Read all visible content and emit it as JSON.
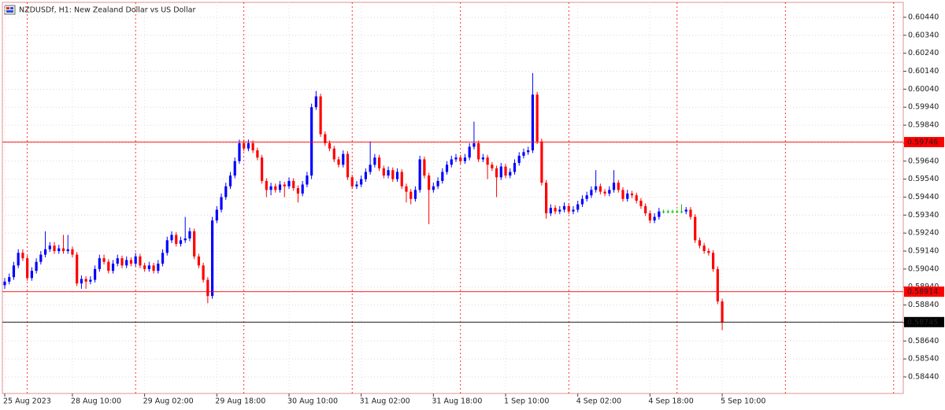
{
  "chart_data": {
    "type": "candlestick",
    "title": "NZDUSDf, H1:  New Zealand Dollar vs US Dollar",
    "title_color": "#d00000",
    "categories": [
      "25 Aug 2023",
      null,
      null,
      null,
      null,
      null,
      null,
      null,
      null,
      null,
      null,
      null,
      null,
      null,
      null,
      "28 Aug 10:00",
      null,
      null,
      null,
      null,
      null,
      null,
      null,
      null,
      null,
      null,
      null,
      null,
      null,
      null,
      null,
      "29 Aug 02:00",
      null,
      null,
      null,
      null,
      null,
      null,
      null,
      null,
      null,
      null,
      null,
      null,
      null,
      null,
      null,
      "29 Aug 18:00",
      null,
      null,
      null,
      null,
      null,
      null,
      null,
      null,
      null,
      null,
      null,
      null,
      null,
      null,
      null,
      "30 Aug 10:00",
      null,
      null,
      null,
      null,
      null,
      null,
      null,
      null,
      null,
      null,
      null,
      null,
      null,
      null,
      null,
      "31 Aug 02:00",
      null,
      null,
      null,
      null,
      null,
      null,
      null,
      null,
      null,
      null,
      null,
      null,
      null,
      null,
      null,
      "31 Aug 18:00",
      null,
      null,
      null,
      null,
      null,
      null,
      null,
      null,
      null,
      null,
      null,
      null,
      null,
      null,
      null,
      "1 Sep 10:00",
      null,
      null,
      null,
      null,
      null,
      null,
      null,
      null,
      null,
      null,
      null,
      null,
      null,
      null,
      null,
      "4 Sep 02:00",
      null,
      null,
      null,
      null,
      null,
      null,
      null,
      null,
      null,
      null,
      null,
      null,
      null,
      null,
      null,
      "4 Sep 18:00",
      null,
      null,
      null,
      null,
      null,
      null,
      null,
      null,
      null,
      null,
      null,
      null,
      null,
      null,
      null,
      "5 Sep 10:00"
    ],
    "open": [
      0.5895,
      0.5897,
      0.58995,
      0.5906,
      0.5913,
      0.591,
      0.5899,
      0.5903,
      0.5908,
      0.5912,
      0.5915,
      0.5917,
      0.5914,
      0.59155,
      0.5914,
      0.5915,
      0.5912,
      0.5896,
      0.58985,
      0.5897,
      0.5898,
      0.5904,
      0.591,
      0.5908,
      0.5903,
      0.5907,
      0.591,
      0.5906,
      0.5909,
      0.5907,
      0.5911,
      0.5906,
      0.5904,
      0.5906,
      0.5903,
      0.5907,
      0.5913,
      0.592,
      0.5923,
      0.5918,
      0.592,
      0.5921,
      0.5925,
      0.5911,
      0.5906,
      0.5898,
      0.5889,
      0.5931,
      0.5937,
      0.5944,
      0.595,
      0.5956,
      0.5964,
      0.5974,
      0.5971,
      0.5974,
      0.597,
      0.5966,
      0.5953,
      0.5948,
      0.595,
      0.5948,
      0.5951,
      0.595,
      0.5953,
      0.5949,
      0.5946,
      0.5951,
      0.5956,
      0.5994,
      0.6,
      0.5979,
      0.5974,
      0.5971,
      0.5965,
      0.5962,
      0.5968,
      0.5955,
      0.595,
      0.5951,
      0.5954,
      0.5958,
      0.5962,
      0.5966,
      0.596,
      0.5956,
      0.5959,
      0.5954,
      0.5958,
      0.595,
      0.5947,
      0.5943,
      0.5948,
      0.5965,
      0.5956,
      0.5948,
      0.595,
      0.5953,
      0.5958,
      0.5962,
      0.5965,
      0.5966,
      0.5964,
      0.5966,
      0.5972,
      0.5974,
      0.5965,
      0.5966,
      0.5962,
      0.596,
      0.5955,
      0.5961,
      0.5956,
      0.5958,
      0.5963,
      0.5967,
      0.5969,
      0.597,
      0.6001,
      0.5975,
      0.5952,
      0.5935,
      0.5938,
      0.5936,
      0.5937,
      0.5939,
      0.5936,
      0.5937,
      0.594,
      0.5943,
      0.5945,
      0.5948,
      0.595,
      0.5947,
      0.5946,
      0.5948,
      0.5952,
      0.5948,
      0.5943,
      0.5946,
      0.5945,
      0.5942,
      0.5939,
      0.5935,
      0.5931,
      0.5933,
      0.5936,
      0.5936,
      0.5936,
      0.5936,
      0.5936,
      0.5936,
      0.5937,
      0.5933,
      0.592,
      0.5917,
      0.5914,
      0.5913,
      0.5904,
      0.5886
    ],
    "high": [
      0.5899,
      0.59015,
      0.5908,
      0.5915,
      0.5915,
      0.59115,
      0.5905,
      0.591,
      0.5914,
      0.5925,
      0.5919,
      0.5919,
      0.59175,
      0.5923,
      0.5923,
      0.59165,
      0.59135,
      0.59005,
      0.59,
      0.59,
      0.5906,
      0.5912,
      0.5912,
      0.59095,
      0.5909,
      0.5912,
      0.59115,
      0.5911,
      0.59105,
      0.5913,
      0.59125,
      0.59075,
      0.5908,
      0.59075,
      0.5909,
      0.5915,
      0.5922,
      0.5925,
      0.59245,
      0.5922,
      0.5933,
      0.5927,
      0.59265,
      0.59125,
      0.59075,
      0.58995,
      0.5933,
      0.5939,
      0.5946,
      0.5952,
      0.5958,
      0.5966,
      0.5976,
      0.5976,
      0.5976,
      0.59755,
      0.59715,
      0.59675,
      0.59545,
      0.5952,
      0.59515,
      0.5953,
      0.59525,
      0.5955,
      0.59545,
      0.59505,
      0.5953,
      0.5958,
      0.5996,
      0.6003,
      0.60015,
      0.59805,
      0.59755,
      0.59725,
      0.59665,
      0.597,
      0.59695,
      0.59565,
      0.5953,
      0.5956,
      0.596,
      0.5975,
      0.5968,
      0.59675,
      0.59615,
      0.5961,
      0.59605,
      0.596,
      0.59595,
      0.59515,
      0.59485,
      0.595,
      0.5967,
      0.59665,
      0.59575,
      0.5952,
      0.5955,
      0.596,
      0.5964,
      0.5967,
      0.5968,
      0.59675,
      0.5968,
      0.5974,
      0.5986,
      0.59755,
      0.5968,
      0.59675,
      0.59635,
      0.59615,
      0.5963,
      0.59625,
      0.596,
      0.5965,
      0.5969,
      0.5971,
      0.5972,
      0.6013,
      0.60025,
      0.59765,
      0.59535,
      0.594,
      0.59395,
      0.5939,
      0.5941,
      0.59405,
      0.5939,
      0.5942,
      0.5945,
      0.5947,
      0.595,
      0.5959,
      0.59515,
      0.59485,
      0.595,
      0.5959,
      0.59535,
      0.59495,
      0.5948,
      0.59475,
      0.59465,
      0.59435,
      0.59405,
      0.59365,
      0.5935,
      0.5938,
      0.5937,
      0.5937,
      0.5937,
      0.5937,
      0.594,
      0.59385,
      0.59385,
      0.59345,
      0.59215,
      0.59185,
      0.59155,
      0.59145,
      0.59055,
      0.58875
    ],
    "low": [
      0.5893,
      0.58955,
      0.5898,
      0.59045,
      0.59085,
      0.58975,
      0.58975,
      0.59015,
      0.59065,
      0.59105,
      0.59135,
      0.59125,
      0.59125,
      0.59125,
      0.59125,
      0.59105,
      0.58945,
      0.5893,
      0.5893,
      0.58955,
      0.58965,
      0.59025,
      0.59065,
      0.59015,
      0.59015,
      0.59055,
      0.59045,
      0.59045,
      0.59055,
      0.59055,
      0.59045,
      0.59025,
      0.59025,
      0.59015,
      0.59015,
      0.59055,
      0.59115,
      0.59185,
      0.59165,
      0.59165,
      0.59185,
      0.59195,
      0.59095,
      0.59045,
      0.58965,
      0.5885,
      0.58875,
      0.59295,
      0.59355,
      0.59425,
      0.59485,
      0.59545,
      0.59625,
      0.59695,
      0.59695,
      0.59685,
      0.59645,
      0.59515,
      0.5944,
      0.5945,
      0.59465,
      0.59465,
      0.5944,
      0.59485,
      0.59475,
      0.5941,
      0.59445,
      0.59495,
      0.5954,
      0.59925,
      0.59775,
      0.59725,
      0.59695,
      0.59635,
      0.59605,
      0.59605,
      0.59535,
      0.59485,
      0.59485,
      0.59495,
      0.59525,
      0.59565,
      0.59605,
      0.59585,
      0.59545,
      0.59545,
      0.59525,
      0.59525,
      0.59485,
      0.5941,
      0.594,
      0.59415,
      0.59465,
      0.59545,
      0.5929,
      0.59465,
      0.59485,
      0.59515,
      0.59565,
      0.59605,
      0.59635,
      0.59625,
      0.59625,
      0.59645,
      0.59705,
      0.59635,
      0.59635,
      0.5954,
      0.59585,
      0.5944,
      0.59535,
      0.59545,
      0.59545,
      0.59565,
      0.59615,
      0.59655,
      0.59675,
      0.59685,
      0.59735,
      0.59505,
      0.5932,
      0.59335,
      0.59345,
      0.59345,
      0.59355,
      0.59345,
      0.59345,
      0.59355,
      0.59385,
      0.59415,
      0.59435,
      0.59465,
      0.59455,
      0.59445,
      0.59445,
      0.59465,
      0.59465,
      0.59415,
      0.59415,
      0.59435,
      0.59405,
      0.59375,
      0.59335,
      0.59295,
      0.59295,
      0.59315,
      0.5935,
      0.5935,
      0.5935,
      0.5935,
      0.5935,
      0.59345,
      0.59315,
      0.59185,
      0.59155,
      0.59125,
      0.59115,
      0.59025,
      0.58845,
      0.587
    ],
    "close": [
      0.5897,
      0.58995,
      0.5906,
      0.5913,
      0.591,
      0.5899,
      0.5903,
      0.5908,
      0.5912,
      0.5915,
      0.5917,
      0.5914,
      0.59155,
      0.5914,
      0.5915,
      0.5912,
      0.5896,
      0.58985,
      0.5897,
      0.5898,
      0.5904,
      0.591,
      0.5908,
      0.5903,
      0.5907,
      0.591,
      0.5906,
      0.5909,
      0.5907,
      0.5911,
      0.5906,
      0.5904,
      0.5906,
      0.5903,
      0.5907,
      0.5913,
      0.592,
      0.5923,
      0.5918,
      0.592,
      0.5921,
      0.5925,
      0.5911,
      0.5906,
      0.5898,
      0.5889,
      0.5931,
      0.5937,
      0.5944,
      0.595,
      0.5956,
      0.5964,
      0.5974,
      0.5971,
      0.5974,
      0.597,
      0.5966,
      0.5953,
      0.5948,
      0.595,
      0.5948,
      0.5951,
      0.595,
      0.5953,
      0.5949,
      0.5946,
      0.5951,
      0.5956,
      0.5994,
      0.6,
      0.5979,
      0.5974,
      0.5971,
      0.5965,
      0.5962,
      0.5968,
      0.5955,
      0.595,
      0.5951,
      0.5954,
      0.5958,
      0.5962,
      0.5966,
      0.596,
      0.5956,
      0.5959,
      0.5954,
      0.5958,
      0.595,
      0.5947,
      0.5943,
      0.5948,
      0.5965,
      0.5956,
      0.5948,
      0.595,
      0.5953,
      0.5958,
      0.5962,
      0.5965,
      0.5966,
      0.5964,
      0.5966,
      0.5972,
      0.5974,
      0.5965,
      0.5966,
      0.5962,
      0.596,
      0.5955,
      0.5961,
      0.5956,
      0.5958,
      0.5963,
      0.5967,
      0.5969,
      0.597,
      0.6001,
      0.5975,
      0.5952,
      0.5935,
      0.5938,
      0.5936,
      0.5937,
      0.5939,
      0.5936,
      0.5937,
      0.594,
      0.5943,
      0.5945,
      0.5948,
      0.595,
      0.5947,
      0.5946,
      0.5948,
      0.5952,
      0.5948,
      0.5943,
      0.5946,
      0.5945,
      0.5942,
      0.5939,
      0.5935,
      0.5931,
      0.5933,
      0.5936,
      0.5936,
      0.5936,
      0.5936,
      0.5936,
      0.5936,
      0.5937,
      0.5933,
      0.592,
      0.5917,
      0.5914,
      0.5913,
      0.5904,
      0.5886,
      0.58745
    ],
    "up_color": "#0000ff",
    "down_color": "#ff0000",
    "doji_color": "#00c000",
    "ylim": [
      0.58348,
      0.60523
    ],
    "yticks": [
      {
        "value": 0.5844,
        "label": "0.58440"
      },
      {
        "value": 0.5854,
        "label": "0.58540"
      },
      {
        "value": 0.5864,
        "label": "0.58640"
      },
      {
        "value": 0.5874,
        "label": "0.58740"
      },
      {
        "value": 0.5884,
        "label": "0.58840"
      },
      {
        "value": 0.5894,
        "label": "0.58940"
      },
      {
        "value": 0.5904,
        "label": "0.59040"
      },
      {
        "value": 0.5914,
        "label": "0.59140"
      },
      {
        "value": 0.5924,
        "label": "0.59240"
      },
      {
        "value": 0.5934,
        "label": "0.59340"
      },
      {
        "value": 0.5944,
        "label": "0.59440"
      },
      {
        "value": 0.5954,
        "label": "0.59540"
      },
      {
        "value": 0.5964,
        "label": "0.59640"
      },
      {
        "value": 0.5974,
        "label": "0.59740"
      },
      {
        "value": 0.5984,
        "label": "0.59840"
      },
      {
        "value": 0.5994,
        "label": "0.59940"
      },
      {
        "value": 0.6004,
        "label": "0.60040"
      },
      {
        "value": 0.6014,
        "label": "0.60140"
      },
      {
        "value": 0.6024,
        "label": "0.60240"
      },
      {
        "value": 0.6034,
        "label": "0.60340"
      },
      {
        "value": 0.6044,
        "label": "0.60440"
      }
    ],
    "grid": true,
    "period_separators": true,
    "separator_color": "#ff0000",
    "hlines": [
      {
        "value": 0.59746,
        "label": "0.59746",
        "color": "#ff0000"
      },
      {
        "value": 0.58914,
        "label": "0.58914",
        "color": "#ff0000"
      },
      {
        "value": 0.58745,
        "label": "0.58745",
        "color": "#000000"
      }
    ]
  }
}
